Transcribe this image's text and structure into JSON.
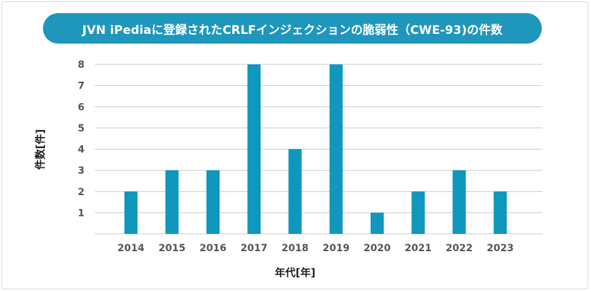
{
  "chart_data": {
    "type": "bar",
    "title": "JVN iPediaに登録されたCRLFインジェクションの脆弱性（CWE-93)の件数",
    "xlabel": "年代[年]",
    "ylabel": "件数[件]",
    "categories": [
      "2014",
      "2015",
      "2016",
      "2017",
      "2018",
      "2019",
      "2020",
      "2021",
      "2022",
      "2023"
    ],
    "values": [
      2,
      3,
      3,
      8,
      4,
      8,
      1,
      2,
      3,
      2
    ],
    "ylim": [
      0,
      8
    ],
    "yticks": [
      1,
      2,
      3,
      4,
      5,
      6,
      7,
      8
    ],
    "grid": true,
    "legend": "none",
    "colors": {
      "bar": "#0f97bd",
      "title_background": "#1f97bd",
      "grid": "#c8c8c8"
    }
  }
}
